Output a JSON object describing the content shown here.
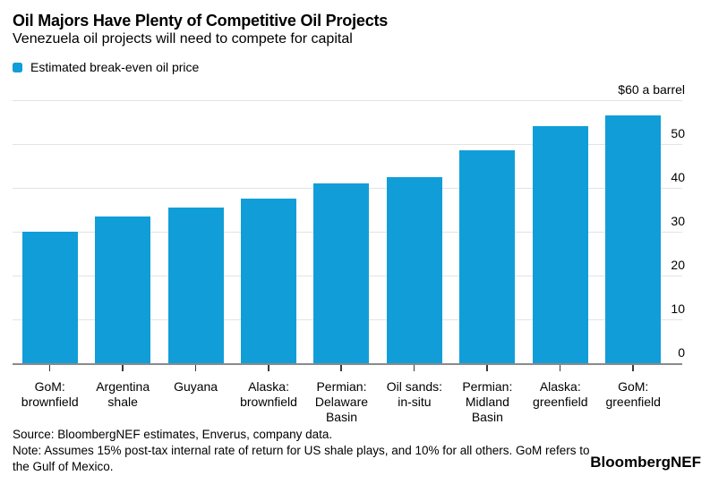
{
  "header": {
    "title": "Oil Majors Have Plenty of Competitive Oil Projects",
    "subtitle": "Venezuela oil projects will need to compete for capital"
  },
  "legend": {
    "label": "Estimated break-even oil price",
    "swatch_color": "#119ED8"
  },
  "chart_data": {
    "type": "bar",
    "title": "Oil Majors Have Plenty of Competitive Oil Projects",
    "subtitle": "Venezuela oil projects will need to compete for capital",
    "series_name": "Estimated break-even oil price",
    "categories": [
      "GoM:\nbrownfield",
      "Argentina\nshale",
      "Guyana",
      "Alaska:\nbrownfield",
      "Permian:\nDelaware\nBasin",
      "Oil sands:\nin-situ",
      "Permian:\nMidland\nBasin",
      "Alaska:\ngreenfield",
      "GoM:\ngreenfield"
    ],
    "values": [
      30,
      33.5,
      35.5,
      37.5,
      41,
      42.5,
      48.5,
      54,
      56.5
    ],
    "ylim": [
      0,
      60
    ],
    "y_ticks": [
      {
        "value": 0,
        "label": "0"
      },
      {
        "value": 10,
        "label": "10"
      },
      {
        "value": 20,
        "label": "20"
      },
      {
        "value": 30,
        "label": "30"
      },
      {
        "value": 40,
        "label": "40"
      },
      {
        "value": 50,
        "label": "50"
      },
      {
        "value": 60,
        "label": "$60 a barrel"
      }
    ],
    "bar_color": "#119ED8",
    "grid": "horizontal",
    "axis_side": "right",
    "legend_position": "top-left"
  },
  "footer": {
    "source": "Source: BloombergNEF estimates, Enverus, company data.",
    "note_lines": [
      "Note: Assumes 15% post-tax internal rate of return for US shale plays, and 10% for all others. GoM refers to",
      "the Gulf of Mexico."
    ],
    "brand": "BloombergNEF"
  }
}
